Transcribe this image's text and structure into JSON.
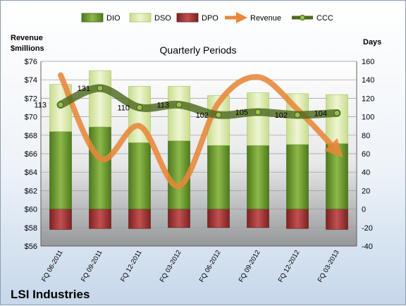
{
  "chart_data": {
    "type": "bar",
    "title": "Quarterly Periods",
    "company": "LSI Industries",
    "left_axis_label": [
      "Revenue",
      "$millions"
    ],
    "right_axis_label": "Days",
    "categories": [
      "FQ 06-2011",
      "FQ 09-2011",
      "FQ 12-2011",
      "FQ 03-2012",
      "FQ 06-2012",
      "FQ 09-2012",
      "FQ 12-2012",
      "FQ 03-2013"
    ],
    "left_ylim": [
      56,
      76
    ],
    "left_ticks": [
      "$56",
      "$58",
      "$60",
      "$62",
      "$64",
      "$66",
      "$68",
      "$70",
      "$72",
      "$74",
      "$76"
    ],
    "right_ylim": [
      -40,
      160
    ],
    "right_ticks": [
      "-40",
      "-20",
      "0",
      "20",
      "40",
      "60",
      "80",
      "100",
      "120",
      "140",
      "160"
    ],
    "legend": [
      "DIO",
      "DSO",
      "DPO",
      "Revenue",
      "CCC"
    ],
    "legend_position": "top",
    "series": [
      {
        "name": "DIO",
        "values": [
          84,
          89,
          72,
          74,
          69,
          69,
          70,
          71
        ]
      },
      {
        "name": "DSO",
        "values": [
          51,
          61,
          61,
          59,
          54,
          57,
          55,
          53
        ]
      },
      {
        "name": "DPO",
        "values": [
          -22,
          -21,
          -21,
          -20,
          -20,
          -20,
          -21,
          -22
        ]
      },
      {
        "name": "Revenue",
        "values": [
          74.5,
          65.5,
          69.0,
          62.5,
          71.5,
          74.3,
          70.8,
          66.3
        ]
      },
      {
        "name": "CCC",
        "values": [
          113,
          131,
          110,
          113,
          102,
          105,
          102,
          104
        ]
      }
    ],
    "ccc_labels": [
      "113",
      "131",
      "110",
      "113",
      "102",
      "105",
      "102",
      "104"
    ],
    "colors": {
      "DIO": "#6f9a2f",
      "DSO": "#dceab0",
      "DPO": "#a83a3a",
      "Revenue": "#e8883a",
      "CCC": "#4e6a20",
      "plot_bg": "#d4d4d4"
    }
  }
}
